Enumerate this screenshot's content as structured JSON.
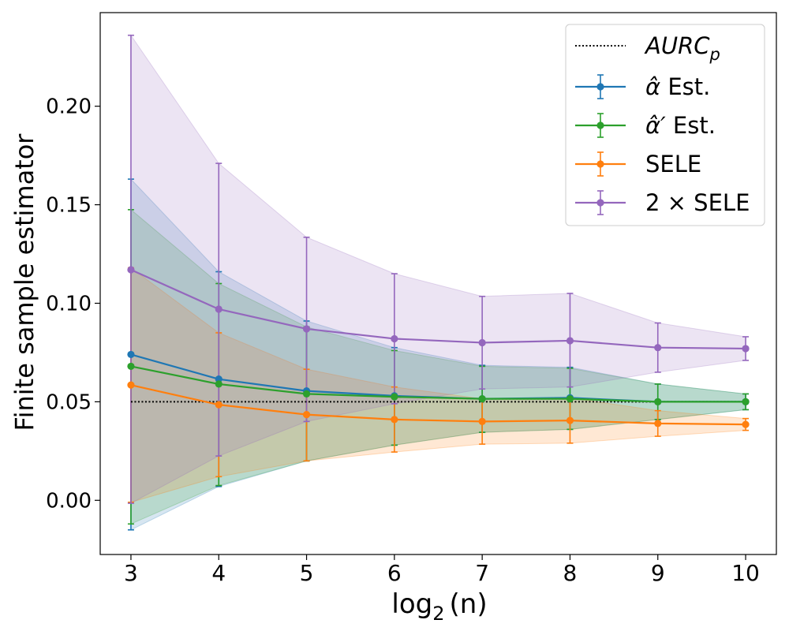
{
  "chart_data": {
    "type": "line",
    "title": "",
    "xlabel_parts": {
      "pre": "log",
      "sub": "2",
      "post": "(n)"
    },
    "ylabel": "Finite sample estimator",
    "x": [
      3,
      4,
      5,
      6,
      7,
      8,
      9,
      10
    ],
    "xlim": [
      2.65,
      10.35
    ],
    "ylim": [
      -0.0275,
      0.2475
    ],
    "xticks": [
      3,
      4,
      5,
      6,
      7,
      8,
      9,
      10
    ],
    "xtick_labels": [
      "3",
      "4",
      "5",
      "6",
      "7",
      "8",
      "9",
      "10"
    ],
    "yticks": [
      0.0,
      0.05,
      0.1,
      0.15,
      0.2
    ],
    "ytick_labels": [
      "0.00",
      "0.05",
      "0.10",
      "0.15",
      "0.20"
    ],
    "legend_position": "top-right",
    "reference": {
      "name": "AURCp",
      "label_main": "AURC",
      "label_sub": "p",
      "value": 0.05,
      "color": "#000000"
    },
    "series": [
      {
        "name": "α̂ Est.",
        "label_main": "α̂",
        "label_rest": " Est.",
        "color": "#1f77b4",
        "values": [
          0.074,
          0.0615,
          0.0555,
          0.053,
          0.0515,
          0.052,
          0.05,
          0.05
        ],
        "lower": [
          -0.015,
          0.007,
          0.02,
          0.028,
          0.0345,
          0.036,
          0.041,
          0.046
        ],
        "upper": [
          0.163,
          0.116,
          0.091,
          0.0775,
          0.0685,
          0.0675,
          0.059,
          0.054
        ]
      },
      {
        "name": "α̂′ Est.",
        "label_main": "α̂′",
        "label_rest": " Est.",
        "color": "#2ca02c",
        "values": [
          0.068,
          0.059,
          0.054,
          0.0525,
          0.0515,
          0.0515,
          0.05,
          0.05
        ],
        "lower": [
          -0.012,
          0.0075,
          0.02,
          0.028,
          0.0345,
          0.036,
          0.041,
          0.046
        ],
        "upper": [
          0.1475,
          0.11,
          0.088,
          0.076,
          0.068,
          0.067,
          0.059,
          0.054
        ]
      },
      {
        "name": "SELE",
        "label_main": "SELE",
        "label_rest": "",
        "color": "#ff7f0e",
        "values": [
          0.0585,
          0.0485,
          0.0435,
          0.041,
          0.04,
          0.0405,
          0.039,
          0.0385
        ],
        "lower": [
          -0.001,
          0.012,
          0.02,
          0.0245,
          0.0285,
          0.029,
          0.0325,
          0.0355
        ],
        "upper": [
          0.118,
          0.085,
          0.0665,
          0.0575,
          0.0515,
          0.052,
          0.0455,
          0.0415
        ]
      },
      {
        "name": "2 × SELE",
        "label_main": "2 × SELE",
        "label_rest": "",
        "color": "#9467bd",
        "values": [
          0.117,
          0.097,
          0.087,
          0.082,
          0.08,
          0.081,
          0.0775,
          0.077
        ],
        "lower": [
          -0.0015,
          0.0225,
          0.04,
          0.049,
          0.0565,
          0.0575,
          0.065,
          0.071
        ],
        "upper": [
          0.236,
          0.171,
          0.1335,
          0.115,
          0.1035,
          0.105,
          0.09,
          0.083
        ]
      }
    ]
  }
}
